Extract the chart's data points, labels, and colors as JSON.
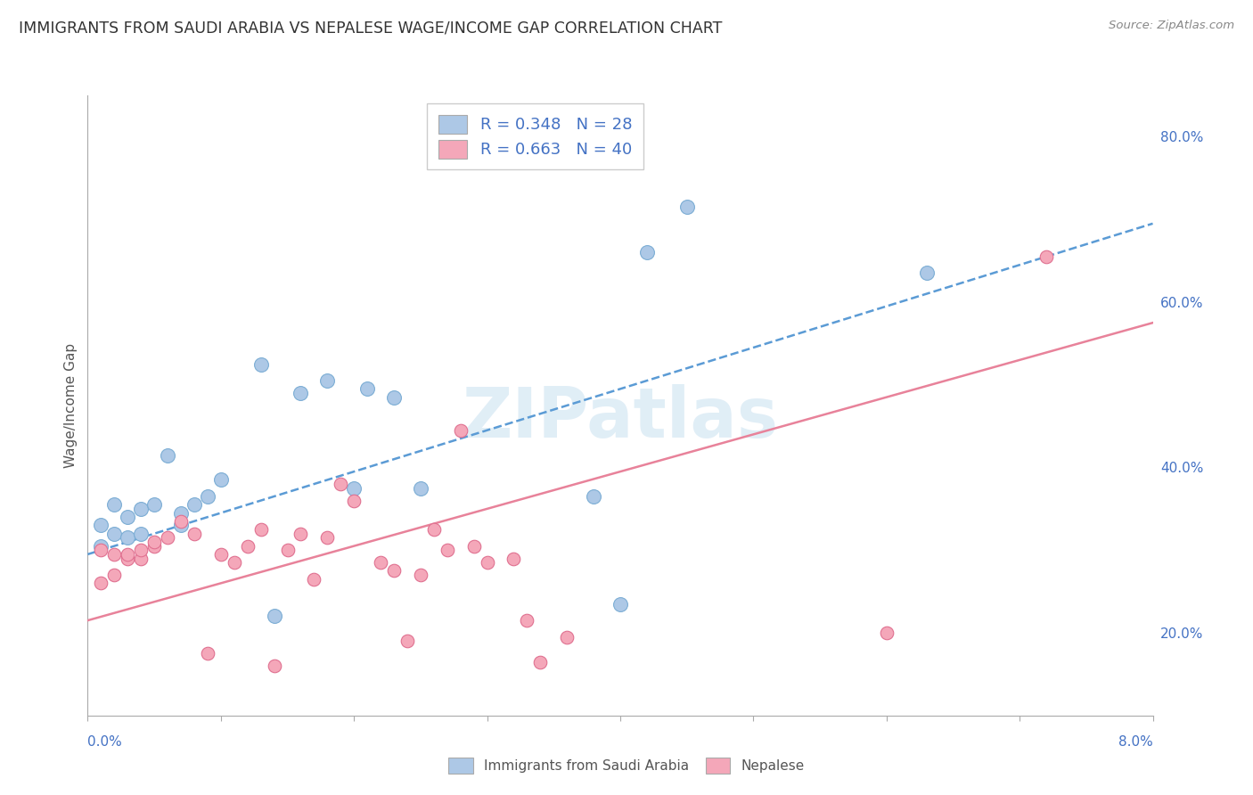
{
  "title": "IMMIGRANTS FROM SAUDI ARABIA VS NEPALESE WAGE/INCOME GAP CORRELATION CHART",
  "source": "Source: ZipAtlas.com",
  "ylabel": "Wage/Income Gap",
  "yticks": [
    0.2,
    0.4,
    0.6,
    0.8
  ],
  "ytick_labels": [
    "20.0%",
    "40.0%",
    "60.0%",
    "80.0%"
  ],
  "xmin": 0.0,
  "xmax": 0.08,
  "ymin": 0.1,
  "ymax": 0.85,
  "legend1_label": "R = 0.348   N = 28",
  "legend2_label": "R = 0.663   N = 40",
  "legend_text_color": "#4472c4",
  "saudi_color": "#adc8e6",
  "saudi_edge": "#7badd4",
  "nepalese_color": "#f4a7b9",
  "nepalese_edge": "#e07090",
  "watermark": "ZIPatlas",
  "saudi_scatter_x": [
    0.001,
    0.001,
    0.002,
    0.002,
    0.003,
    0.003,
    0.004,
    0.004,
    0.005,
    0.006,
    0.007,
    0.007,
    0.008,
    0.009,
    0.01,
    0.013,
    0.014,
    0.016,
    0.018,
    0.02,
    0.021,
    0.023,
    0.025,
    0.038,
    0.04,
    0.042,
    0.045,
    0.063
  ],
  "saudi_scatter_y": [
    0.305,
    0.33,
    0.32,
    0.355,
    0.315,
    0.34,
    0.32,
    0.35,
    0.355,
    0.415,
    0.345,
    0.33,
    0.355,
    0.365,
    0.385,
    0.525,
    0.22,
    0.49,
    0.505,
    0.375,
    0.495,
    0.485,
    0.375,
    0.365,
    0.235,
    0.66,
    0.715,
    0.635
  ],
  "nepalese_scatter_x": [
    0.001,
    0.001,
    0.002,
    0.002,
    0.003,
    0.003,
    0.004,
    0.004,
    0.005,
    0.005,
    0.006,
    0.007,
    0.008,
    0.009,
    0.01,
    0.011,
    0.012,
    0.013,
    0.014,
    0.015,
    0.016,
    0.017,
    0.018,
    0.019,
    0.02,
    0.022,
    0.023,
    0.024,
    0.025,
    0.026,
    0.027,
    0.028,
    0.029,
    0.03,
    0.032,
    0.033,
    0.034,
    0.036,
    0.06,
    0.072
  ],
  "nepalese_scatter_y": [
    0.26,
    0.3,
    0.27,
    0.295,
    0.29,
    0.295,
    0.29,
    0.3,
    0.305,
    0.31,
    0.315,
    0.335,
    0.32,
    0.175,
    0.295,
    0.285,
    0.305,
    0.325,
    0.16,
    0.3,
    0.32,
    0.265,
    0.315,
    0.38,
    0.36,
    0.285,
    0.275,
    0.19,
    0.27,
    0.325,
    0.3,
    0.445,
    0.305,
    0.285,
    0.29,
    0.215,
    0.165,
    0.195,
    0.2,
    0.655
  ],
  "saudi_line_x": [
    0.0,
    0.08
  ],
  "saudi_line_y": [
    0.295,
    0.695
  ],
  "nepalese_line_x": [
    0.0,
    0.08
  ],
  "nepalese_line_y": [
    0.215,
    0.575
  ],
  "saudi_line_color": "#5b9bd5",
  "nepalese_line_color": "#e8829a",
  "grid_color": "#cccccc"
}
